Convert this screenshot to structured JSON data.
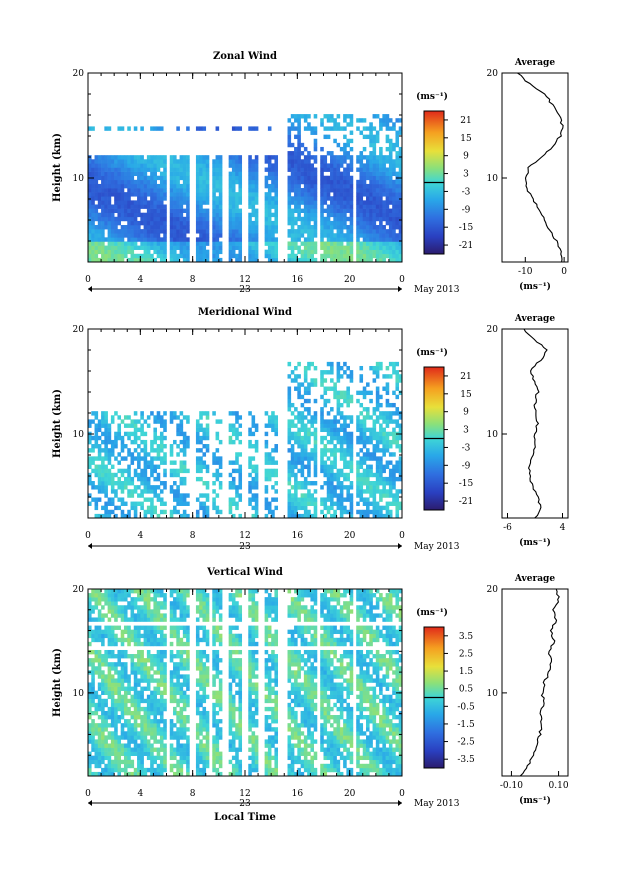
{
  "chart_data": [
    {
      "type": "heatmap",
      "title": "Zonal Wind",
      "ylabel": "Height (km)",
      "y_ticks": [
        "10",
        "20"
      ],
      "ylim": [
        2,
        20
      ],
      "x_ticks": [
        "0",
        "4",
        "8",
        "12",
        "16",
        "20",
        "0"
      ],
      "xlim": [
        0,
        24
      ],
      "date_label": "23",
      "month_label": "May 2013",
      "colorbar": {
        "unit": "(ms⁻¹)",
        "ticks": [
          "21",
          "15",
          "9",
          "3",
          "-3",
          "-9",
          "-15",
          "-21"
        ],
        "range": [
          -24,
          24
        ]
      },
      "average": {
        "title": "Average",
        "y_ticks": [
          "10",
          "20"
        ],
        "x_ticks": [
          "-10",
          "0"
        ],
        "xlabel": "(ms⁻¹)",
        "xlim": [
          -16,
          1
        ],
        "profile": [
          [
            2,
            -0.5
          ],
          [
            3,
            -1
          ],
          [
            4,
            -2
          ],
          [
            5,
            -3.5
          ],
          [
            6,
            -5
          ],
          [
            7,
            -6.5
          ],
          [
            8,
            -8
          ],
          [
            9,
            -9.5
          ],
          [
            10,
            -10
          ],
          [
            11,
            -9
          ],
          [
            12,
            -6
          ],
          [
            13,
            -3
          ],
          [
            14,
            -1
          ],
          [
            15,
            -0.5
          ],
          [
            16,
            -1
          ],
          [
            17,
            -3
          ],
          [
            18,
            -5
          ],
          [
            19,
            -9
          ],
          [
            20,
            -12
          ]
        ]
      }
    },
    {
      "type": "heatmap",
      "title": "Meridional Wind",
      "ylabel": "Height (km)",
      "y_ticks": [
        "10",
        "20"
      ],
      "ylim": [
        2,
        20
      ],
      "x_ticks": [
        "0",
        "4",
        "8",
        "12",
        "16",
        "20",
        "0"
      ],
      "xlim": [
        0,
        24
      ],
      "date_label": "23",
      "month_label": "May 2013",
      "colorbar": {
        "unit": "(ms⁻¹)",
        "ticks": [
          "21",
          "15",
          "9",
          "3",
          "-3",
          "-9",
          "-15",
          "-21"
        ],
        "range": [
          -24,
          24
        ]
      },
      "average": {
        "title": "Average",
        "y_ticks": [
          "10",
          "20"
        ],
        "x_ticks": [
          "-6",
          "4"
        ],
        "xlabel": "(ms⁻¹)",
        "xlim": [
          -7,
          5
        ],
        "profile": [
          [
            2,
            -1
          ],
          [
            3,
            0
          ],
          [
            4,
            -0.5
          ],
          [
            5,
            -1.5
          ],
          [
            6,
            -2
          ],
          [
            7,
            -2
          ],
          [
            8,
            -1.5
          ],
          [
            9,
            -1
          ],
          [
            10,
            -1
          ],
          [
            11,
            -0.5
          ],
          [
            12,
            -1
          ],
          [
            13,
            -1
          ],
          [
            14,
            -0.5
          ],
          [
            15,
            -1
          ],
          [
            16,
            -2
          ],
          [
            17,
            0
          ],
          [
            18,
            1
          ],
          [
            19,
            -1
          ],
          [
            20,
            -3
          ]
        ]
      }
    },
    {
      "type": "heatmap",
      "title": "Vertical Wind",
      "ylabel": "Height (km)",
      "xlabel": "Local Time",
      "y_ticks": [
        "10",
        "20"
      ],
      "ylim": [
        2,
        20
      ],
      "x_ticks": [
        "0",
        "4",
        "8",
        "12",
        "16",
        "20",
        "0"
      ],
      "xlim": [
        0,
        24
      ],
      "date_label": "23",
      "month_label": "May 2013",
      "colorbar": {
        "unit": "(ms⁻¹)",
        "ticks": [
          "3.5",
          "2.5",
          "1.5",
          "0.5",
          "-0.5",
          "-1.5",
          "-2.5",
          "-3.5"
        ],
        "range": [
          -4,
          4
        ]
      },
      "average": {
        "title": "Average",
        "y_ticks": [
          "10",
          "20"
        ],
        "x_ticks": [
          "-0.10",
          "0.10"
        ],
        "xlabel": "(ms⁻¹)",
        "xlim": [
          -0.14,
          0.14
        ],
        "profile": [
          [
            2,
            -0.06
          ],
          [
            3,
            -0.03
          ],
          [
            4,
            -0.01
          ],
          [
            5,
            0.01
          ],
          [
            6,
            0.02
          ],
          [
            7,
            0.03
          ],
          [
            8,
            0.02
          ],
          [
            9,
            0.04
          ],
          [
            10,
            0.03
          ],
          [
            11,
            0.04
          ],
          [
            12,
            0.06
          ],
          [
            13,
            0.07
          ],
          [
            14,
            0.06
          ],
          [
            15,
            0.08
          ],
          [
            16,
            0.07
          ],
          [
            17,
            0.09
          ],
          [
            18,
            0.08
          ],
          [
            19,
            0.1
          ],
          [
            20,
            0.09
          ]
        ]
      }
    }
  ]
}
